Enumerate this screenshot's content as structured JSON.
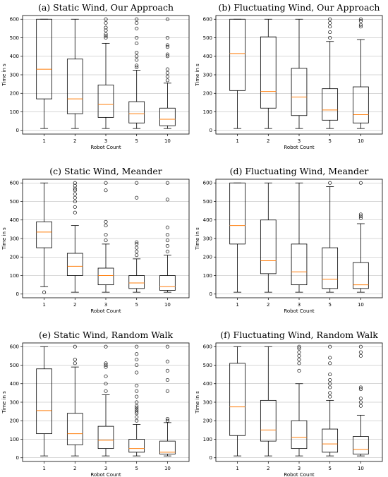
{
  "chart_data": [
    {
      "type": "box",
      "title": "(a) Static Wind, Our Approach",
      "xlabel": "Robot Count",
      "ylabel": "Time in s",
      "categories": [
        "1",
        "2",
        "3",
        "5",
        "10"
      ],
      "ylim": [
        -20,
        620
      ],
      "yticks": [
        0,
        100,
        200,
        300,
        400,
        500,
        600
      ],
      "grid_y": true,
      "boxes": [
        {
          "whislo": 10,
          "q1": 170,
          "med": 330,
          "q3": 600,
          "whishi": 600,
          "fliers": []
        },
        {
          "whislo": 10,
          "q1": 90,
          "med": 170,
          "q3": 385,
          "whishi": 600,
          "fliers": []
        },
        {
          "whislo": 10,
          "q1": 70,
          "med": 140,
          "q3": 245,
          "whishi": 470,
          "fliers": [
            500,
            510,
            520,
            540,
            555,
            580,
            600
          ]
        },
        {
          "whislo": 10,
          "q1": 40,
          "med": 90,
          "q3": 155,
          "whishi": 325,
          "fliers": [
            340,
            350,
            380,
            400,
            420,
            470,
            500,
            550,
            580,
            600
          ]
        },
        {
          "whislo": 10,
          "q1": 25,
          "med": 60,
          "q3": 120,
          "whishi": 255,
          "fliers": [
            270,
            290,
            310,
            330,
            400,
            410,
            450,
            460,
            500,
            600
          ]
        }
      ]
    },
    {
      "type": "box",
      "title": "(b) Fluctuating Wind, Our Approach",
      "xlabel": "Robot Count",
      "ylabel": "Time in s",
      "categories": [
        "1",
        "2",
        "3",
        "5",
        "10"
      ],
      "ylim": [
        -20,
        620
      ],
      "yticks": [
        0,
        100,
        200,
        300,
        400,
        500,
        600
      ],
      "grid_y": true,
      "boxes": [
        {
          "whislo": 10,
          "q1": 215,
          "med": 415,
          "q3": 600,
          "whishi": 600,
          "fliers": []
        },
        {
          "whislo": 10,
          "q1": 120,
          "med": 210,
          "q3": 505,
          "whishi": 600,
          "fliers": []
        },
        {
          "whislo": 10,
          "q1": 80,
          "med": 180,
          "q3": 335,
          "whishi": 600,
          "fliers": []
        },
        {
          "whislo": 10,
          "q1": 55,
          "med": 110,
          "q3": 225,
          "whishi": 480,
          "fliers": [
            500,
            530,
            560,
            580,
            600
          ]
        },
        {
          "whislo": 10,
          "q1": 40,
          "med": 85,
          "q3": 235,
          "whishi": 490,
          "fliers": [
            560,
            570,
            590,
            600
          ]
        }
      ]
    },
    {
      "type": "box",
      "title": "(c) Static Wind, Meander",
      "xlabel": "Robot Count",
      "ylabel": "Time in s",
      "categories": [
        "1",
        "2",
        "3",
        "5",
        "10"
      ],
      "ylim": [
        -20,
        620
      ],
      "yticks": [
        0,
        100,
        200,
        300,
        400,
        500,
        600
      ],
      "grid_y": true,
      "boxes": [
        {
          "whislo": 40,
          "q1": 250,
          "med": 335,
          "q3": 390,
          "whishi": 600,
          "fliers": [
            10
          ]
        },
        {
          "whislo": 10,
          "q1": 100,
          "med": 150,
          "q3": 220,
          "whishi": 370,
          "fliers": [
            440,
            470,
            500,
            520,
            540,
            560,
            570,
            585,
            600
          ]
        },
        {
          "whislo": 10,
          "q1": 50,
          "med": 100,
          "q3": 140,
          "whishi": 270,
          "fliers": [
            290,
            320,
            370,
            390,
            560,
            600
          ]
        },
        {
          "whislo": 10,
          "q1": 30,
          "med": 60,
          "q3": 100,
          "whishi": 190,
          "fliers": [
            210,
            230,
            250,
            270,
            280,
            520,
            600
          ]
        },
        {
          "whislo": 10,
          "q1": 20,
          "med": 40,
          "q3": 100,
          "whishi": 210,
          "fliers": [
            230,
            260,
            290,
            320,
            360,
            510,
            600
          ]
        }
      ]
    },
    {
      "type": "box",
      "title": "(d) Fluctuating Wind, Meander",
      "xlabel": "Robot Count",
      "ylabel": "Time in s",
      "categories": [
        "1",
        "2",
        "3",
        "5",
        "10"
      ],
      "ylim": [
        -20,
        620
      ],
      "yticks": [
        0,
        100,
        200,
        300,
        400,
        500,
        600
      ],
      "grid_y": true,
      "boxes": [
        {
          "whislo": 10,
          "q1": 270,
          "med": 370,
          "q3": 600,
          "whishi": 600,
          "fliers": []
        },
        {
          "whislo": 10,
          "q1": 110,
          "med": 180,
          "q3": 400,
          "whishi": 600,
          "fliers": []
        },
        {
          "whislo": 10,
          "q1": 50,
          "med": 120,
          "q3": 270,
          "whishi": 600,
          "fliers": []
        },
        {
          "whislo": 10,
          "q1": 30,
          "med": 80,
          "q3": 250,
          "whishi": 580,
          "fliers": [
            600
          ]
        },
        {
          "whislo": 10,
          "q1": 30,
          "med": 50,
          "q3": 170,
          "whishi": 380,
          "fliers": [
            410,
            420,
            430,
            600
          ]
        }
      ]
    },
    {
      "type": "box",
      "title": "(e) Static Wind, Random Walk",
      "xlabel": "Robot Count",
      "ylabel": "Time in s",
      "categories": [
        "1",
        "2",
        "3",
        "5",
        "10"
      ],
      "ylim": [
        -20,
        620
      ],
      "yticks": [
        0,
        100,
        200,
        300,
        400,
        500,
        600
      ],
      "grid_y": true,
      "boxes": [
        {
          "whislo": 10,
          "q1": 130,
          "med": 255,
          "q3": 480,
          "whishi": 600,
          "fliers": []
        },
        {
          "whislo": 10,
          "q1": 70,
          "med": 130,
          "q3": 240,
          "whishi": 490,
          "fliers": [
            510,
            530,
            600
          ]
        },
        {
          "whislo": 10,
          "q1": 50,
          "med": 95,
          "q3": 170,
          "whishi": 340,
          "fliers": [
            360,
            400,
            440,
            490,
            500,
            510,
            600
          ]
        },
        {
          "whislo": 10,
          "q1": 30,
          "med": 50,
          "q3": 100,
          "whishi": 180,
          "fliers": [
            200,
            220,
            240,
            250,
            260,
            270,
            280,
            300,
            330,
            360,
            390,
            460,
            500,
            530,
            560,
            600
          ]
        },
        {
          "whislo": 10,
          "q1": 20,
          "med": 30,
          "q3": 90,
          "whishi": 190,
          "fliers": [
            200,
            210,
            360,
            420,
            470,
            520,
            600
          ]
        }
      ]
    },
    {
      "type": "box",
      "title": "(f) Fluctuating Wind, Random Walk",
      "xlabel": "Robot Count",
      "ylabel": "Time in s",
      "categories": [
        "1",
        "2",
        "3",
        "5",
        "10"
      ],
      "ylim": [
        -20,
        620
      ],
      "yticks": [
        0,
        100,
        200,
        300,
        400,
        500,
        600
      ],
      "grid_y": true,
      "boxes": [
        {
          "whislo": 10,
          "q1": 120,
          "med": 275,
          "q3": 510,
          "whishi": 600,
          "fliers": []
        },
        {
          "whislo": 10,
          "q1": 90,
          "med": 150,
          "q3": 310,
          "whishi": 600,
          "fliers": []
        },
        {
          "whislo": 10,
          "q1": 50,
          "med": 110,
          "q3": 200,
          "whishi": 400,
          "fliers": [
            470,
            510,
            530,
            550,
            570,
            590,
            600
          ]
        },
        {
          "whislo": 10,
          "q1": 30,
          "med": 75,
          "q3": 155,
          "whishi": 310,
          "fliers": [
            330,
            350,
            380,
            400,
            420,
            450,
            510,
            540,
            600
          ]
        },
        {
          "whislo": 10,
          "q1": 20,
          "med": 45,
          "q3": 115,
          "whishi": 230,
          "fliers": [
            280,
            300,
            320,
            370,
            380,
            550,
            570,
            600
          ]
        }
      ]
    }
  ],
  "colors": {
    "box": "#000000",
    "median": "#ff7f0e",
    "grid": "#b0b0b0",
    "flier": "#000000"
  }
}
